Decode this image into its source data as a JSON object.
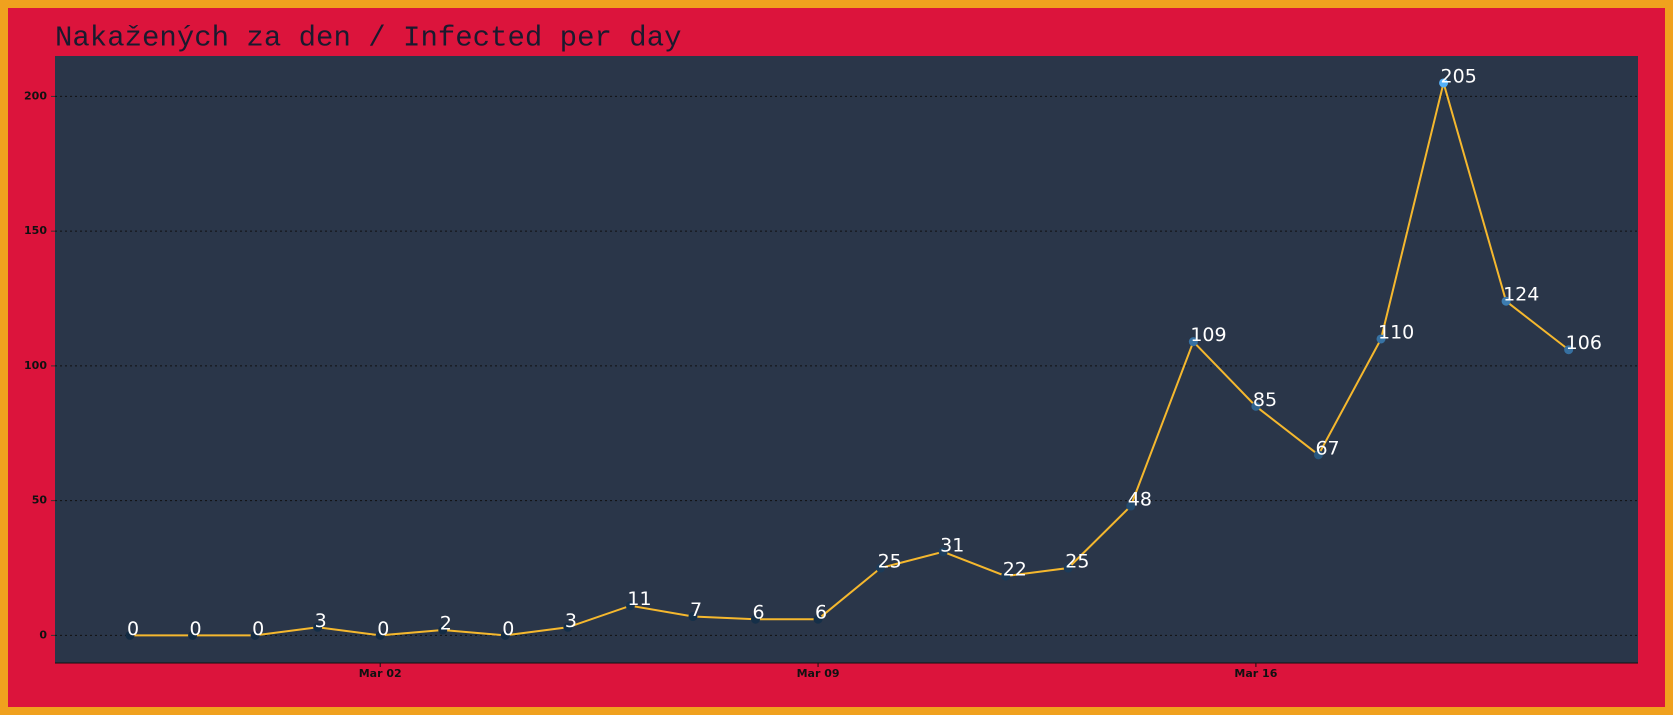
{
  "chart_data": {
    "type": "line",
    "title": "Nakažených za den / Infected per day",
    "categories": [
      null,
      null,
      null,
      null,
      "Mar 02",
      null,
      null,
      null,
      null,
      null,
      null,
      "Mar 09",
      null,
      null,
      null,
      null,
      null,
      null,
      "Mar 16",
      null,
      null,
      null,
      null,
      null
    ],
    "values": [
      0,
      0,
      0,
      3,
      0,
      2,
      0,
      3,
      11,
      7,
      6,
      6,
      25,
      31,
      22,
      25,
      48,
      109,
      85,
      67,
      110,
      205,
      124,
      106
    ],
    "color": "#f5b82e",
    "point_color_low": "#132b43",
    "point_color_high": "#56b1f7",
    "ylim": [
      -10.25,
      215
    ],
    "yticks": [
      0,
      50,
      100,
      150,
      200
    ],
    "grid": true
  }
}
